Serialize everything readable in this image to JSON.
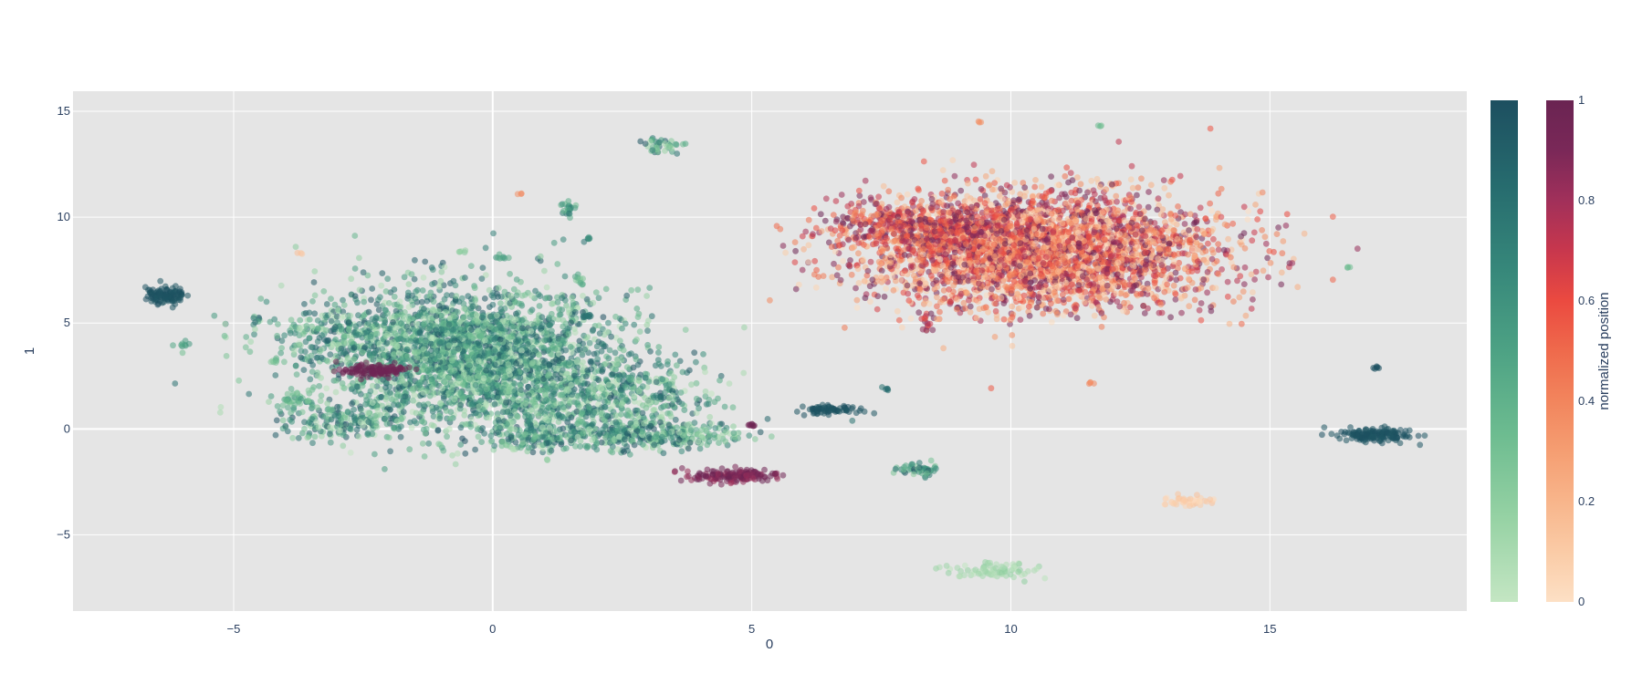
{
  "chart_data": {
    "type": "scatter",
    "xlabel": "0",
    "ylabel": "1",
    "xlim": [
      -8.1,
      18.8
    ],
    "ylim": [
      -8.6,
      15.95
    ],
    "x_ticks": [
      -5,
      0,
      5,
      10,
      15
    ],
    "y_ticks": [
      -5,
      0,
      5,
      10,
      15
    ],
    "x_tick_labels": [
      "−5",
      "0",
      "5",
      "10",
      "15"
    ],
    "y_tick_labels": [
      "−5",
      "0",
      "5",
      "10",
      "15"
    ],
    "grid": true,
    "plot_background": "#e5e5e5",
    "marker_opacity": 0.55,
    "colorbars": [
      {
        "name": "",
        "colorscale": [
          "#c4e6c3",
          "#96d2a4",
          "#6dbc90",
          "#4da284",
          "#36877a",
          "#266b6e",
          "#1d4f60"
        ],
        "tick_labels": []
      },
      {
        "name": "normalized position",
        "colorscale": [
          "#fde0c5",
          "#facba6",
          "#f8b58b",
          "#f59e72",
          "#f2855d",
          "#ef6a4c",
          "#eb4a40",
          "#c8374d",
          "#a1305a",
          "#7a2858",
          "#6a2452"
        ],
        "ticks": [
          0,
          0.2,
          0.4,
          0.6,
          0.8,
          1
        ],
        "tick_labels": [
          "0",
          "0.2",
          "0.4",
          "0.6",
          "0.8",
          "1"
        ]
      }
    ],
    "series": [
      {
        "scale": 0,
        "cx": -0.5,
        "cy": 3.5,
        "sx": 1.4,
        "sy": 1.6,
        "n": 2600,
        "vmin": 0,
        "vmax": 1
      },
      {
        "scale": 0,
        "cx": 1.8,
        "cy": 1.3,
        "sx": 1.2,
        "sy": 1.0,
        "n": 700,
        "vmin": 0,
        "vmax": 1
      },
      {
        "scale": 0,
        "cx": -3.0,
        "cy": 4.5,
        "sx": 0.9,
        "sy": 0.6,
        "n": 200,
        "vmin": 0,
        "vmax": 1
      },
      {
        "scale": 0,
        "cx": -2.8,
        "cy": 0.4,
        "sx": 0.8,
        "sy": 0.45,
        "n": 200,
        "vmin": 0,
        "vmax": 1
      },
      {
        "scale": 0,
        "cx": 3.2,
        "cy": -0.3,
        "sx": 0.75,
        "sy": 0.3,
        "n": 260,
        "vmin": 0,
        "vmax": 1
      },
      {
        "scale": 0,
        "cx": 1.0,
        "cy": -0.4,
        "sx": 0.6,
        "sy": 0.35,
        "n": 160,
        "vmin": 0,
        "vmax": 1
      },
      {
        "scale": 0,
        "cx": -3.8,
        "cy": 1.4,
        "sx": 0.2,
        "sy": 0.2,
        "n": 40,
        "vmin": 0.2,
        "vmax": 0.6
      },
      {
        "scale": 0,
        "cx": -6.3,
        "cy": 6.3,
        "sx": 0.2,
        "sy": 0.18,
        "n": 120,
        "vmin": 0.95,
        "vmax": 1
      },
      {
        "scale": 0,
        "cx": -6.0,
        "cy": 4.0,
        "sx": 0.06,
        "sy": 0.06,
        "n": 8,
        "vmin": 0.4,
        "vmax": 0.6
      },
      {
        "scale": 0,
        "cx": -4.2,
        "cy": 3.2,
        "sx": 0.08,
        "sy": 0.06,
        "n": 8,
        "vmin": 0.2,
        "vmax": 0.4
      },
      {
        "scale": 0,
        "cx": 3.3,
        "cy": 13.4,
        "sx": 0.2,
        "sy": 0.2,
        "n": 40,
        "vmin": 0.1,
        "vmax": 1
      },
      {
        "scale": 0,
        "cx": 1.45,
        "cy": 10.4,
        "sx": 0.08,
        "sy": 0.2,
        "n": 22,
        "vmin": 0.3,
        "vmax": 0.8
      },
      {
        "scale": 0,
        "cx": 1.7,
        "cy": 7.0,
        "sx": 0.08,
        "sy": 0.12,
        "n": 12,
        "vmin": 0.1,
        "vmax": 0.5
      },
      {
        "scale": 0,
        "cx": 1.8,
        "cy": 5.3,
        "sx": 0.1,
        "sy": 0.05,
        "n": 10,
        "vmin": 0.7,
        "vmax": 0.9
      },
      {
        "scale": 0,
        "cx": 1.9,
        "cy": 9.0,
        "sx": 0.06,
        "sy": 0.06,
        "n": 6,
        "vmin": 0.6,
        "vmax": 0.9
      },
      {
        "scale": 0,
        "cx": 0.15,
        "cy": 8.1,
        "sx": 0.07,
        "sy": 0.08,
        "n": 8,
        "vmin": 0.4,
        "vmax": 0.6
      },
      {
        "scale": 0,
        "cx": -0.6,
        "cy": 8.4,
        "sx": 0.06,
        "sy": 0.04,
        "n": 5,
        "vmin": 0.1,
        "vmax": 0.3
      },
      {
        "scale": 0,
        "cx": 3.2,
        "cy": 1.5,
        "sx": 0.08,
        "sy": 0.04,
        "n": 6,
        "vmin": 0.7,
        "vmax": 0.9
      },
      {
        "scale": 0,
        "cx": 6.5,
        "cy": 0.9,
        "sx": 0.3,
        "sy": 0.12,
        "n": 70,
        "vmin": 0.95,
        "vmax": 1
      },
      {
        "scale": 0,
        "cx": 7.6,
        "cy": 1.9,
        "sx": 0.05,
        "sy": 0.04,
        "n": 5,
        "vmin": 0.7,
        "vmax": 0.9
      },
      {
        "scale": 0,
        "cx": 8.2,
        "cy": -1.9,
        "sx": 0.2,
        "sy": 0.15,
        "n": 50,
        "vmin": 0.2,
        "vmax": 1
      },
      {
        "scale": 0,
        "cx": 9.6,
        "cy": -6.7,
        "sx": 0.45,
        "sy": 0.18,
        "n": 80,
        "vmin": 0,
        "vmax": 0.2
      },
      {
        "scale": 0,
        "cx": 11.7,
        "cy": 14.3,
        "sx": 0.03,
        "sy": 0.03,
        "n": 3,
        "vmin": 0.3,
        "vmax": 0.4
      },
      {
        "scale": 0,
        "cx": 16.5,
        "cy": 7.6,
        "sx": 0.03,
        "sy": 0.03,
        "n": 3,
        "vmin": 0.3,
        "vmax": 0.4
      },
      {
        "scale": 0,
        "cx": 17.0,
        "cy": -0.3,
        "sx": 0.35,
        "sy": 0.15,
        "n": 160,
        "vmin": 0.95,
        "vmax": 1
      },
      {
        "scale": 0,
        "cx": 17.05,
        "cy": 2.9,
        "sx": 0.05,
        "sy": 0.03,
        "n": 6,
        "vmin": 0.95,
        "vmax": 1
      },
      {
        "scale": 1,
        "cx": 10.6,
        "cy": 8.4,
        "sx": 1.7,
        "sy": 1.35,
        "n": 3600,
        "vmin": 0,
        "vmax": 1
      },
      {
        "scale": 1,
        "cx": 8.3,
        "cy": 9.5,
        "sx": 0.9,
        "sy": 0.6,
        "n": 450,
        "vmin": 0.3,
        "vmax": 1
      },
      {
        "scale": 1,
        "cx": 8.4,
        "cy": 5.0,
        "sx": 0.06,
        "sy": 0.25,
        "n": 14,
        "vmin": 0.6,
        "vmax": 1
      },
      {
        "scale": 1,
        "cx": -2.3,
        "cy": 2.75,
        "sx": 0.35,
        "sy": 0.15,
        "n": 110,
        "vmin": 0.95,
        "vmax": 1
      },
      {
        "scale": 1,
        "cx": 4.6,
        "cy": -2.2,
        "sx": 0.45,
        "sy": 0.15,
        "n": 150,
        "vmin": 0.8,
        "vmax": 1
      },
      {
        "scale": 1,
        "cx": 5.0,
        "cy": 0.2,
        "sx": 0.05,
        "sy": 0.05,
        "n": 8,
        "vmin": 0.95,
        "vmax": 1
      },
      {
        "scale": 1,
        "cx": 13.4,
        "cy": -3.4,
        "sx": 0.2,
        "sy": 0.15,
        "n": 45,
        "vmin": 0,
        "vmax": 0.15
      },
      {
        "scale": 1,
        "cx": -3.7,
        "cy": 8.3,
        "sx": 0.03,
        "sy": 0.03,
        "n": 3,
        "vmin": 0.1,
        "vmax": 0.15
      },
      {
        "scale": 1,
        "cx": 0.55,
        "cy": 11.1,
        "sx": 0.03,
        "sy": 0.03,
        "n": 3,
        "vmin": 0.35,
        "vmax": 0.4
      },
      {
        "scale": 1,
        "cx": 9.4,
        "cy": 14.5,
        "sx": 0.03,
        "sy": 0.03,
        "n": 3,
        "vmin": 0.35,
        "vmax": 0.4
      },
      {
        "scale": 1,
        "cx": 11.55,
        "cy": 2.2,
        "sx": 0.04,
        "sy": 0.04,
        "n": 4,
        "vmin": 0.35,
        "vmax": 0.45
      }
    ]
  }
}
